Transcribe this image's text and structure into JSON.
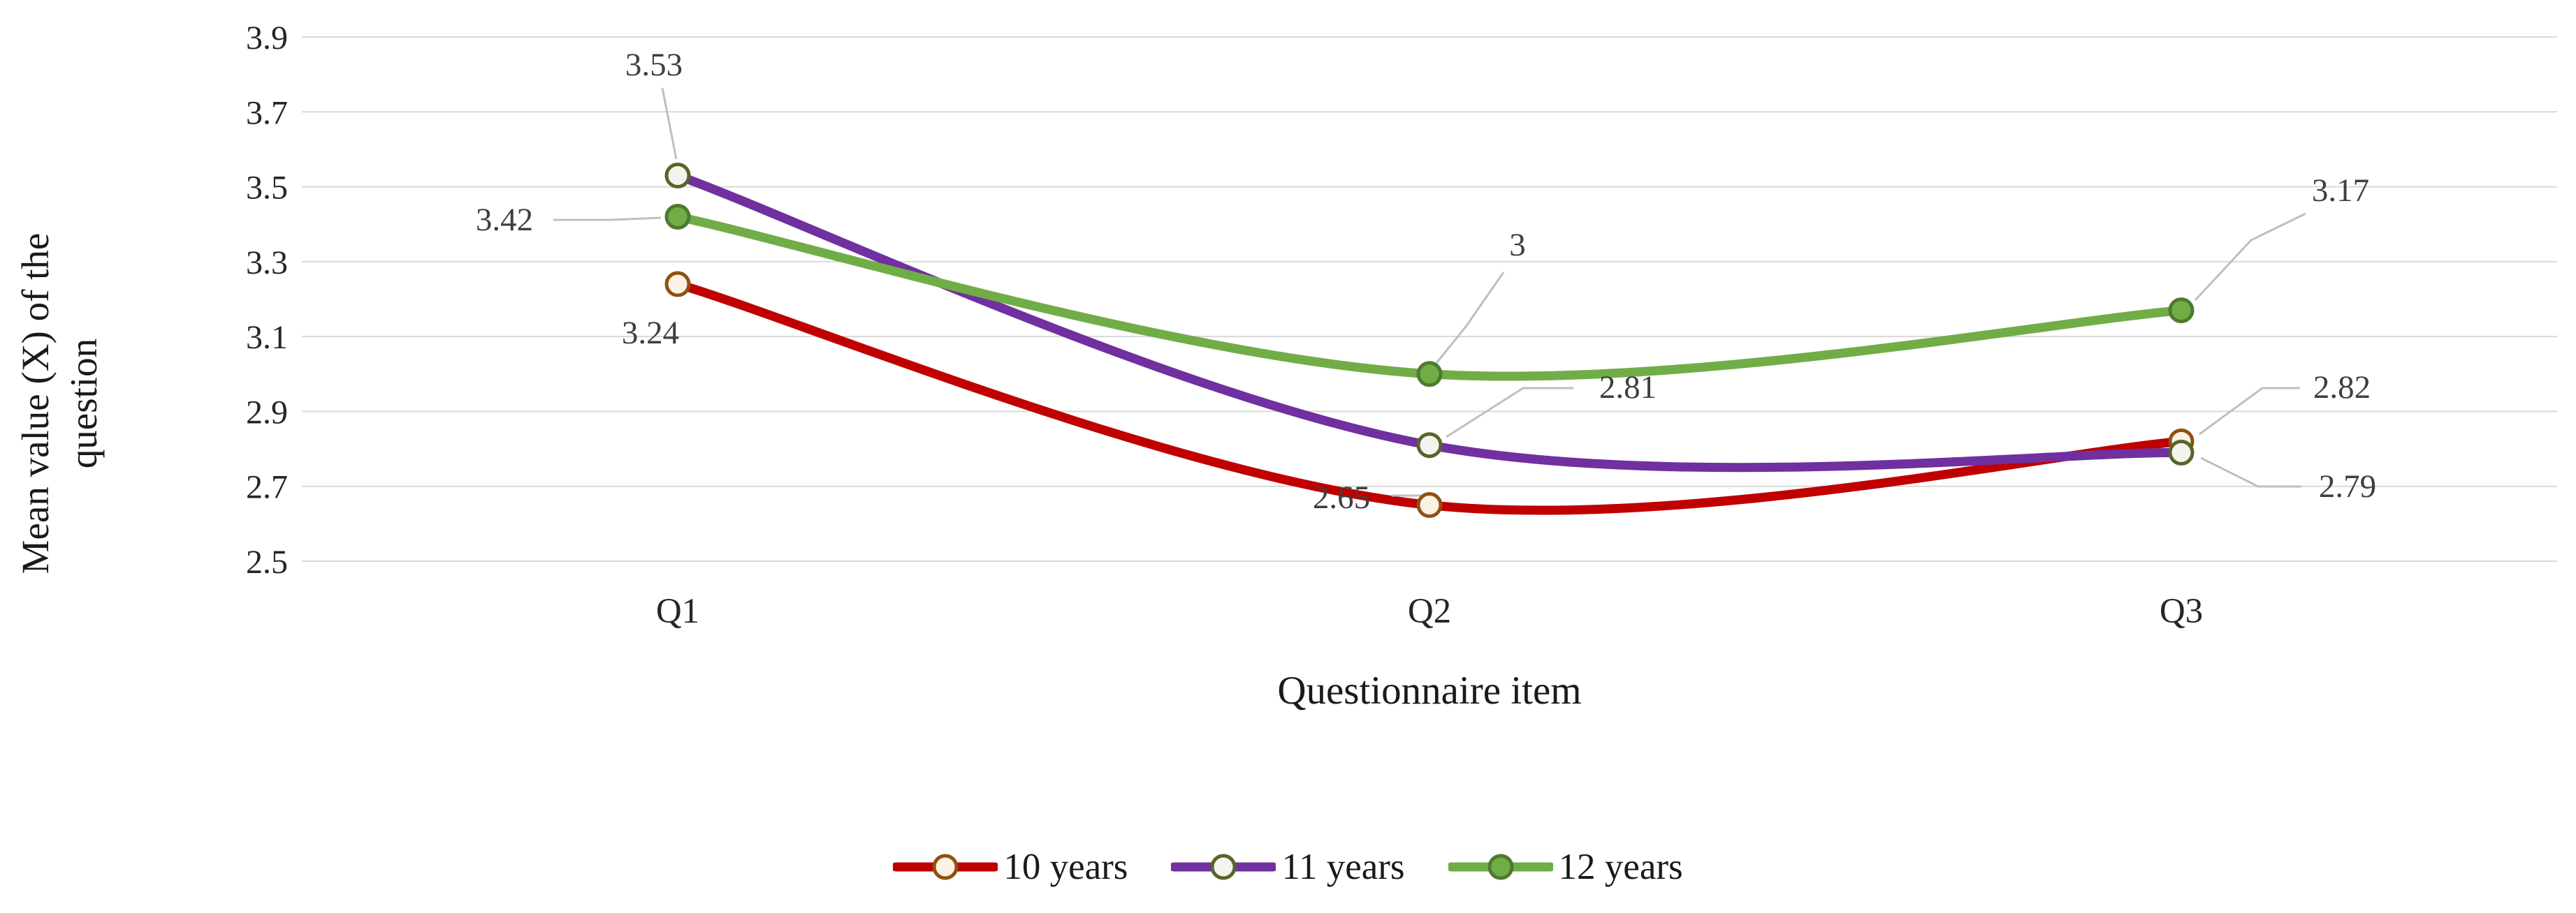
{
  "chart_data": {
    "type": "line",
    "line_style": "smooth",
    "title": "",
    "xlabel": "Questionnaire item",
    "ylabel": "Mean value (X) of the question",
    "categories": [
      "Q1",
      "Q2",
      "Q3"
    ],
    "ylim": [
      2.5,
      3.9
    ],
    "yticks": [
      "3.9",
      "3.7",
      "3.5",
      "3.3",
      "3.1",
      "2.9",
      "2.7",
      "2.5"
    ],
    "grid": true,
    "legend_position": "bottom",
    "series": [
      {
        "name": "10 years",
        "values": [
          3.24,
          2.65,
          2.82
        ],
        "labels": [
          "3.24",
          "2.65",
          "2.82"
        ],
        "color": "#C00000",
        "marker_fill": "#FBF1E5",
        "marker_stroke": "#8E5110"
      },
      {
        "name": "11 years",
        "values": [
          3.53,
          2.81,
          2.79
        ],
        "labels": [
          "3.53",
          "2.81",
          "2.79"
        ],
        "color": "#7030A0",
        "marker_fill": "#F4F4EE",
        "marker_stroke": "#55662A"
      },
      {
        "name": "12 years",
        "values": [
          3.42,
          3.0,
          3.17
        ],
        "labels": [
          "3.42",
          "3",
          "3.17"
        ],
        "color": "#70AD47",
        "marker_fill": "#70AD47",
        "marker_stroke": "#4E7A30"
      }
    ],
    "colors": {
      "gridline": "#D9D9D9",
      "leader": "#BFBFBF",
      "tick_text": "#262626",
      "label_text": "#3F3F3F",
      "axis_title": "#1A1A1A"
    }
  }
}
